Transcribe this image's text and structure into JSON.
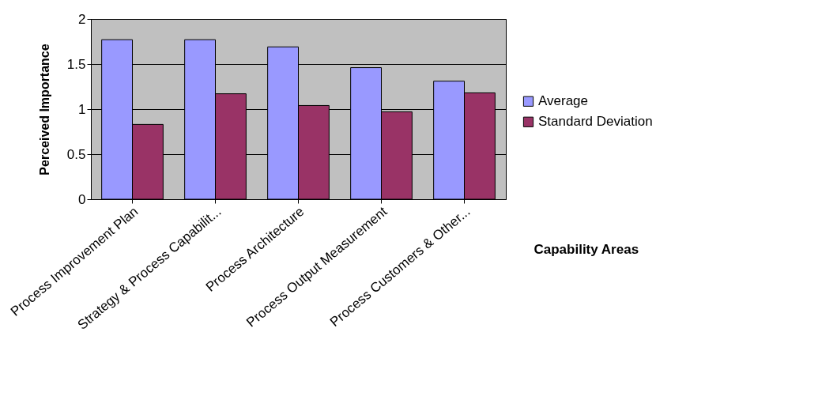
{
  "chart_data": {
    "type": "bar",
    "xlabel": "Capability Areas",
    "ylabel": "Perceived Importance",
    "categories": [
      "Process Improvement Plan",
      "Strategy & Process Capabilit...",
      "Process Architecture",
      "Process Output Measurement",
      "Process Customers & Other..."
    ],
    "series": [
      {
        "name": "Average",
        "color": "#9999ff",
        "values": [
          1.77,
          1.77,
          1.69,
          1.46,
          1.31
        ]
      },
      {
        "name": "Standard Deviation",
        "color": "#993366",
        "values": [
          0.83,
          1.17,
          1.04,
          0.97,
          1.18
        ]
      }
    ],
    "ylim": [
      0,
      2
    ],
    "yticks": [
      0,
      0.5,
      1,
      1.5,
      2
    ],
    "grid": "y",
    "legend": "right"
  }
}
